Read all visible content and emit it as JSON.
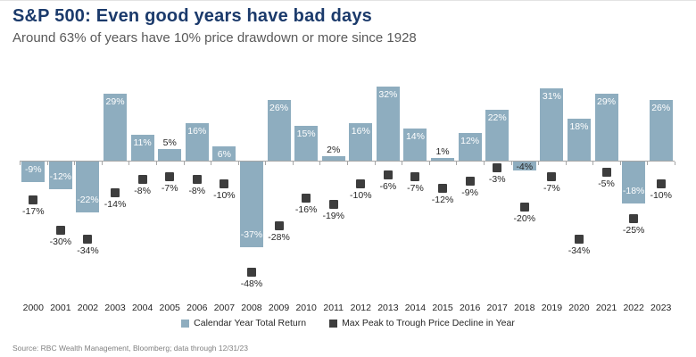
{
  "header": {
    "title": "S&P 500: Even good years have bad days",
    "subtitle": "Around 63% of years have 10% price drawdown or more since 1928"
  },
  "footer": {
    "source": "Source: RBC Wealth Management, Bloomberg; data through 12/31/23"
  },
  "colors": {
    "bar": "#8eadbf",
    "marker": "#3d3d3d",
    "title": "#1b3a6b",
    "subtitle": "#595959",
    "axis": "#a6a6a6"
  },
  "chart_data": {
    "type": "bar",
    "title": "S&P 500: Even good years have bad days",
    "subtitle": "Around 63% of years have 10% price drawdown or more since 1928",
    "categories": [
      "2000",
      "2001",
      "2002",
      "2003",
      "2004",
      "2005",
      "2006",
      "2007",
      "2008",
      "2009",
      "2010",
      "2011",
      "2012",
      "2013",
      "2014",
      "2015",
      "2016",
      "2017",
      "2018",
      "2019",
      "2020",
      "2021",
      "2022",
      "2023"
    ],
    "series": [
      {
        "name": "Calendar Year Total Return",
        "type": "bar",
        "color": "#8eadbf",
        "values": [
          -9,
          -12,
          -22,
          29,
          11,
          5,
          16,
          6,
          -37,
          26,
          15,
          2,
          16,
          32,
          14,
          1,
          12,
          22,
          -4,
          31,
          18,
          29,
          -18,
          26
        ],
        "unit": "%"
      },
      {
        "name": "Max Peak to Trough Price Decline in Year",
        "type": "scatter-square",
        "color": "#3d3d3d",
        "values": [
          -17,
          -30,
          -34,
          -14,
          -8,
          -7,
          -8,
          -10,
          -48,
          -28,
          -16,
          -19,
          -10,
          -6,
          -7,
          -12,
          -9,
          -3,
          -20,
          -7,
          -34,
          -5,
          -25,
          -10
        ],
        "unit": "%"
      }
    ],
    "ylim": [
      -55,
      35
    ],
    "grid": false,
    "legend_position": "bottom",
    "source": "Source: RBC Wealth Management, Bloomberg; data through 12/31/23"
  }
}
